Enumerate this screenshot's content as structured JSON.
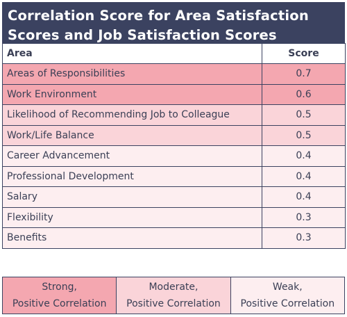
{
  "chart_data": {
    "type": "table",
    "title": "Correlation Score for Area Satisfaction Scores and Job Satisfaction Scores",
    "columns": [
      "Area",
      "Score"
    ],
    "rows": [
      {
        "area": "Areas of Responsibilities",
        "score": "0.7",
        "strength": "strong"
      },
      {
        "area": "Work Environment",
        "score": "0.6",
        "strength": "strong"
      },
      {
        "area": "Likelihood of Recommending Job to Colleague",
        "score": "0.5",
        "strength": "moderate"
      },
      {
        "area": "Work/Life Balance",
        "score": "0.5",
        "strength": "moderate"
      },
      {
        "area": "Career Advancement",
        "score": "0.4",
        "strength": "weak"
      },
      {
        "area": "Professional Development",
        "score": "0.4",
        "strength": "weak"
      },
      {
        "area": "Salary",
        "score": "0.4",
        "strength": "weak"
      },
      {
        "area": "Flexibility",
        "score": "0.3",
        "strength": "weak"
      },
      {
        "area": "Benefits",
        "score": "0.3",
        "strength": "weak"
      }
    ],
    "legend": [
      {
        "key": "strong",
        "label": "Strong, Positive Correlation",
        "color": "#f4a7b0"
      },
      {
        "key": "moderate",
        "label": "Moderate, Positive Correlation",
        "color": "#fad4d9"
      },
      {
        "key": "weak",
        "label": "Weak, Positive Correlation",
        "color": "#fdeef0"
      }
    ]
  },
  "colors": {
    "header": "#3b4260",
    "border": "#3b4260"
  }
}
